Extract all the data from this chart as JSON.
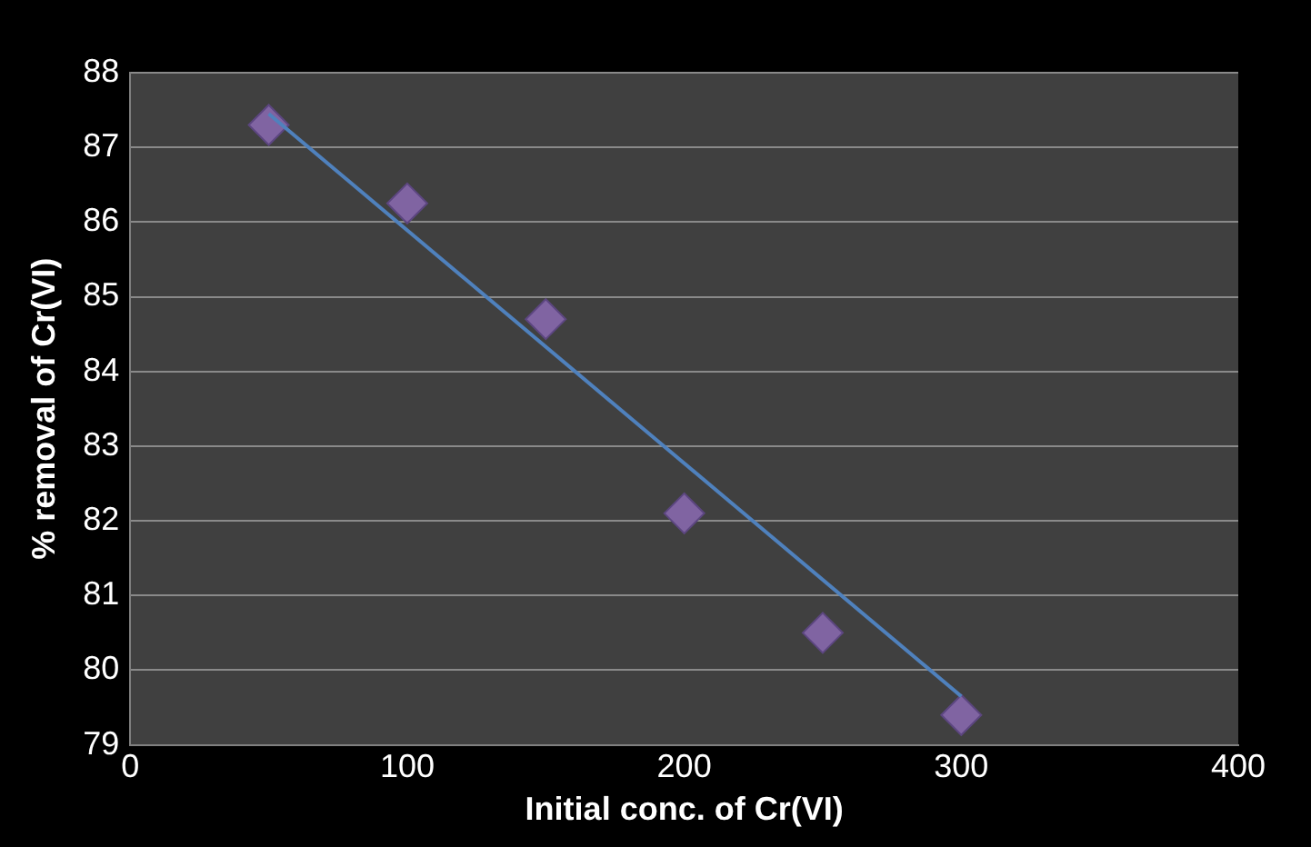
{
  "chart_data": {
    "type": "scatter",
    "xlabel": "Initial conc. of Cr(VI)",
    "ylabel": "% removal of Cr(VI)",
    "xlim": [
      0,
      400
    ],
    "xticks": [
      0,
      100,
      200,
      300,
      400
    ],
    "ylim": [
      79,
      88
    ],
    "yticks": [
      79,
      80,
      81,
      82,
      83,
      84,
      85,
      86,
      87,
      88
    ],
    "grid": "y",
    "legend": false,
    "series": [
      {
        "color": "#8064a2",
        "marker": "diamond",
        "x": [
          50,
          100,
          150,
          200,
          250,
          300
        ],
        "values": [
          87.3,
          86.25,
          84.7,
          82.1,
          80.5,
          79.4
        ]
      },
      {
        "type": "line",
        "color": "#4f81bd",
        "marker": "none",
        "line_style": "solid",
        "x": [
          50,
          300
        ],
        "values": [
          87.45,
          79.65
        ]
      }
    ]
  }
}
